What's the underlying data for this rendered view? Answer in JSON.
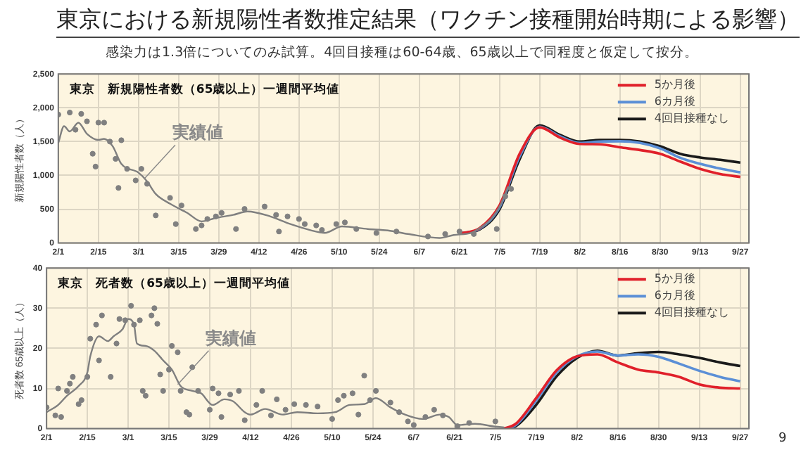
{
  "chart_data": [
    {
      "type": "line",
      "title": "東京における新規陽性者数推定結果（ワクチン接種開始時期による影響）",
      "subtitle": "感染力は1.3倍についてのみ試算。4回目接種は60-64歳、65歳以上で同程度と仮定して按分。",
      "ylabel": "新規陽性者数（人）",
      "annotations": [
        "東京　新規陽性者数（65歳以上）一週間平均値",
        {
          "text": "実績値",
          "x": "--03-03",
          "y": 950
        }
      ],
      "xlim": [
        "--02-01",
        "--09-30"
      ],
      "xticks": [
        {
          "value": "--02-01",
          "label": "2/1"
        },
        {
          "value": "--02-15",
          "label": "2/15"
        },
        {
          "value": "--03-01",
          "label": "3/1"
        },
        {
          "value": "--03-15",
          "label": "3/15"
        },
        {
          "value": "--03-29",
          "label": "3/29"
        },
        {
          "value": "--04-12",
          "label": "4/12"
        },
        {
          "value": "--04-26",
          "label": "4/26"
        },
        {
          "value": "--05-10",
          "label": "5/10"
        },
        {
          "value": "--05-24",
          "label": "5/24"
        },
        {
          "value": "--06-07",
          "label": "6/7"
        },
        {
          "value": "--06-21",
          "label": "6/21"
        },
        {
          "value": "--07-05",
          "label": "7/5"
        },
        {
          "value": "--07-19",
          "label": "7/19"
        },
        {
          "value": "--08-02",
          "label": "8/2"
        },
        {
          "value": "--08-16",
          "label": "8/16"
        },
        {
          "value": "--08-30",
          "label": "8/30"
        },
        {
          "value": "--09-13",
          "label": "9/13"
        },
        {
          "value": "--09-27",
          "label": "9/27"
        }
      ],
      "ylim": [
        0,
        2500
      ],
      "yticks": [
        0,
        500,
        {
          "value": 1000,
          "label": "1,000"
        },
        {
          "value": 1500,
          "label": "1,500"
        },
        {
          "value": 2000,
          "label": "2,000"
        },
        {
          "value": 2500,
          "label": "2,500"
        }
      ],
      "grid": true,
      "legend": "top right",
      "line_style": "solid",
      "series": [
        {
          "type": "scatter",
          "marker": "circle",
          "color": "#808080",
          "x": [
            "--02-01",
            "--02-05",
            "--02-07",
            "--02-09",
            "--02-11",
            "--02-13",
            "--02-14",
            "--02-15",
            "--02-17",
            "--02-19",
            "--02-21",
            "--02-22",
            "--02-23",
            "--02-25",
            "--02-28",
            "--03-02",
            "--03-04",
            "--03-07",
            "--03-12",
            "--03-14",
            "--03-16",
            "--03-21",
            "--03-23",
            "--03-25",
            "--03-28",
            "--03-30",
            "--04-04",
            "--04-07",
            "--04-14",
            "--04-18",
            "--04-19",
            "--04-22",
            "--04-26",
            "--04-28",
            "--05-02",
            "--05-04",
            "--05-09",
            "--05-12",
            "--05-16",
            "--05-23",
            "--05-30",
            "--06-10",
            "--06-16",
            "--06-21",
            "--06-26",
            "--07-04",
            "--07-07",
            "--07-09"
          ],
          "values": [
            1900,
            1930,
            1675,
            1910,
            1800,
            1320,
            1130,
            1780,
            1780,
            1500,
            1245,
            815,
            1520,
            1097,
            926,
            1097,
            875,
            408,
            667,
            280,
            555,
            207,
            260,
            355,
            393,
            445,
            207,
            504,
            540,
            415,
            170,
            393,
            355,
            280,
            260,
            193,
            280,
            304,
            207,
            148,
            170,
            96,
            133,
            170,
            133,
            207,
            690,
            800
          ]
        },
        {
          "type": "line",
          "color": "#7f7f7f",
          "x": [
            "--02-01",
            "--02-03",
            "--02-05",
            "--02-08",
            "--02-11",
            "--02-15",
            "--02-17",
            "--02-20",
            "--02-23",
            "--03-01",
            "--03-04",
            "--03-07",
            "--03-12",
            "--03-18",
            "--03-23",
            "--03-28",
            "--04-03",
            "--04-08",
            "--04-16",
            "--04-23",
            "--04-30",
            "--05-05",
            "--05-11",
            "--05-20",
            "--05-27",
            "--06-03",
            "--06-14",
            "--06-19",
            "--06-25",
            "--06-28",
            "--07-02",
            "--07-05",
            "--07-08"
          ],
          "values": [
            1480,
            1727,
            1650,
            1780,
            1615,
            1525,
            1540,
            1430,
            1170,
            1040,
            910,
            725,
            580,
            445,
            320,
            370,
            415,
            467,
            393,
            280,
            190,
            150,
            245,
            207,
            185,
            133,
            74,
            118,
            150,
            220,
            355,
            540,
            836
          ]
        },
        {
          "type": "line",
          "name": "5か月後",
          "color": "#e0202a",
          "x": [
            "--06-21",
            "--06-28",
            "--07-05",
            "--07-12",
            "--07-19",
            "--07-26",
            "--08-02",
            "--08-09",
            "--08-16",
            "--08-23",
            "--08-30",
            "--09-06",
            "--09-13",
            "--09-20",
            "--09-27"
          ],
          "values": [
            140,
            220,
            560,
            1320,
            1710,
            1560,
            1465,
            1460,
            1415,
            1375,
            1320,
            1205,
            1095,
            1020,
            977
          ]
        },
        {
          "type": "line",
          "name": "6カ月後",
          "color": "#5b8fd6",
          "x": [
            "--06-21",
            "--06-28",
            "--07-05",
            "--07-12",
            "--07-19",
            "--07-26",
            "--08-02",
            "--08-09",
            "--08-16",
            "--08-23",
            "--08-30",
            "--09-06",
            "--09-13",
            "--09-20",
            "--09-27"
          ],
          "values": [
            140,
            210,
            530,
            1280,
            1720,
            1580,
            1480,
            1500,
            1505,
            1480,
            1400,
            1260,
            1170,
            1100,
            1045
          ]
        },
        {
          "type": "line",
          "name": "4回目接種なし",
          "color": "#1a1a1a",
          "x": [
            "--06-21",
            "--06-28",
            "--07-05",
            "--07-12",
            "--07-19",
            "--07-26",
            "--08-02",
            "--08-09",
            "--08-16",
            "--08-23",
            "--08-30",
            "--09-06",
            "--09-13",
            "--09-20",
            "--09-27"
          ],
          "values": [
            140,
            200,
            500,
            1240,
            1740,
            1600,
            1500,
            1525,
            1525,
            1500,
            1430,
            1320,
            1265,
            1230,
            1190
          ]
        }
      ]
    },
    {
      "type": "line",
      "ylabel": "死者数 65歳以上（人）",
      "annotations": [
        "東京　死者数（65歳以上）一週間平均値",
        {
          "text": "実績値",
          "x": "--03-18",
          "y": 11
        },
        "9"
      ],
      "xlim": [
        "--02-01",
        "--09-30"
      ],
      "xticks": [
        {
          "value": "--02-01",
          "label": "2/1"
        },
        {
          "value": "--02-15",
          "label": "2/15"
        },
        {
          "value": "--03-01",
          "label": "3/1"
        },
        {
          "value": "--03-15",
          "label": "3/15"
        },
        {
          "value": "--03-29",
          "label": "3/29"
        },
        {
          "value": "--04-12",
          "label": "4/12"
        },
        {
          "value": "--04-26",
          "label": "4/26"
        },
        {
          "value": "--05-10",
          "label": "5/10"
        },
        {
          "value": "--05-24",
          "label": "5/24"
        },
        {
          "value": "--06-07",
          "label": "6/7"
        },
        {
          "value": "--06-21",
          "label": "6/21"
        },
        {
          "value": "--07-05",
          "label": "7/5"
        },
        {
          "value": "--07-19",
          "label": "7/19"
        },
        {
          "value": "--08-02",
          "label": "8/2"
        },
        {
          "value": "--08-16",
          "label": "8/16"
        },
        {
          "value": "--08-30",
          "label": "8/30"
        },
        {
          "value": "--09-13",
          "label": "9/13"
        },
        {
          "value": "--09-27",
          "label": "9/27"
        }
      ],
      "ylim": [
        0,
        40
      ],
      "yticks": [
        0,
        10,
        20,
        30,
        40
      ],
      "grid": true,
      "legend": "top right",
      "line_style": "solid",
      "series": [
        {
          "type": "scatter",
          "marker": "circle",
          "color": "#808080",
          "x": [
            "--02-01",
            "--02-04",
            "--02-05",
            "--02-06",
            "--02-08",
            "--02-09",
            "--02-10",
            "--02-12",
            "--02-13",
            "--02-15",
            "--02-16",
            "--02-18",
            "--02-19",
            "--02-20",
            "--02-23",
            "--02-25",
            "--02-26",
            "--02-28",
            "--03-02",
            "--03-03",
            "--03-05",
            "--03-06",
            "--03-07",
            "--03-09",
            "--03-10",
            "--03-11",
            "--03-12",
            "--03-13",
            "--03-15",
            "--03-16",
            "--03-18",
            "--03-19",
            "--03-21",
            "--03-22",
            "--03-23",
            "--03-25",
            "--03-29",
            "--03-30",
            "--04-01",
            "--04-02",
            "--04-05",
            "--04-08",
            "--04-10",
            "--04-14",
            "--04-16",
            "--04-19",
            "--04-21",
            "--04-24",
            "--04-27",
            "--05-01",
            "--05-05",
            "--05-10",
            "--05-12",
            "--05-14",
            "--05-17",
            "--05-19",
            "--05-21",
            "--05-23",
            "--05-25",
            "--05-30",
            "--06-02",
            "--06-05",
            "--06-07",
            "--06-11",
            "--06-14",
            "--06-17",
            "--06-22",
            "--06-26",
            "--07-05"
          ],
          "values": [
            5.3,
            3.3,
            10,
            2.9,
            9.4,
            11.2,
            12.9,
            6.1,
            7.1,
            12.9,
            22.4,
            25.9,
            17,
            28.2,
            12.9,
            21.2,
            27.3,
            27,
            30.6,
            25.9,
            27,
            9.4,
            8.2,
            28.2,
            30,
            26.1,
            13.5,
            9.4,
            14.7,
            20.6,
            19,
            9.4,
            4.1,
            3.5,
            15.3,
            9.4,
            4.7,
            10,
            8.8,
            2.9,
            8.5,
            9.4,
            2.1,
            5.9,
            9.4,
            3.3,
            7.3,
            4.7,
            6.1,
            5.9,
            5.5,
            2.4,
            7.1,
            8.2,
            8.8,
            3.5,
            13.2,
            7.1,
            9.4,
            6.5,
            4.1,
            1.8,
            0.9,
            2.9,
            4.7,
            3.3,
            0.6,
            1.4,
            1.8
          ]
        },
        {
          "type": "line",
          "color": "#7f7f7f",
          "x": [
            "--02-01",
            "--02-05",
            "--02-08",
            "--02-12",
            "--02-15",
            "--02-16",
            "--02-19",
            "--02-22",
            "--02-24",
            "--02-27",
            "--03-01",
            "--03-03",
            "--03-04",
            "--03-07",
            "--03-10",
            "--03-13",
            "--03-16",
            "--03-19",
            "--03-23",
            "--03-26",
            "--03-30",
            "--04-03",
            "--04-06",
            "--04-10",
            "--04-12",
            "--04-17",
            "--04-23",
            "--04-28",
            "--05-05",
            "--05-11",
            "--05-16",
            "--05-21",
            "--05-25",
            "--05-30",
            "--06-04",
            "--06-10",
            "--06-16",
            "--06-19",
            "--06-22",
            "--06-28",
            "--07-05",
            "--07-08"
          ],
          "values": [
            4.1,
            5.9,
            8.2,
            10.6,
            14,
            18,
            23,
            21.8,
            23,
            24.7,
            27.3,
            25.9,
            21.2,
            20.6,
            19.4,
            17,
            14.7,
            10.6,
            9.4,
            8.8,
            5.9,
            7.3,
            6.8,
            4.1,
            3.5,
            4.9,
            3.5,
            4.1,
            3.8,
            4.1,
            5.9,
            6.1,
            7.6,
            5.3,
            3.5,
            2.4,
            3.5,
            2.9,
            0.9,
            1.2,
            0.5,
            0.3
          ]
        },
        {
          "type": "line",
          "name": "5か月後",
          "color": "#e0202a",
          "x": [
            "--07-08",
            "--07-12",
            "--07-19",
            "--07-26",
            "--08-02",
            "--08-09",
            "--08-16",
            "--08-23",
            "--08-30",
            "--09-06",
            "--09-13",
            "--09-20",
            "--09-27"
          ],
          "values": [
            0,
            1.2,
            7.6,
            14.5,
            18,
            18.5,
            16.5,
            14.7,
            14,
            12.9,
            11,
            10.2,
            10
          ]
        },
        {
          "type": "line",
          "name": "6カ月後",
          "color": "#5b8fd6",
          "x": [
            "--07-08",
            "--07-12",
            "--07-19",
            "--07-26",
            "--08-02",
            "--08-09",
            "--08-16",
            "--08-23",
            "--08-30",
            "--09-06",
            "--09-13",
            "--09-20",
            "--09-27"
          ],
          "values": [
            0,
            0.9,
            7,
            14,
            18,
            19.2,
            18.2,
            18.5,
            17.9,
            16.2,
            14.4,
            12.9,
            11.8
          ]
        },
        {
          "type": "line",
          "name": "4回目接種なし",
          "color": "#1a1a1a",
          "x": [
            "--07-08",
            "--07-12",
            "--07-19",
            "--07-26",
            "--08-02",
            "--08-09",
            "--08-16",
            "--08-23",
            "--08-30",
            "--09-06",
            "--09-13",
            "--09-20",
            "--09-27"
          ],
          "values": [
            0,
            0.6,
            5.9,
            13,
            17.6,
            19.4,
            18.2,
            18.8,
            19.1,
            18.5,
            17.6,
            16.5,
            15.6
          ]
        }
      ]
    }
  ]
}
